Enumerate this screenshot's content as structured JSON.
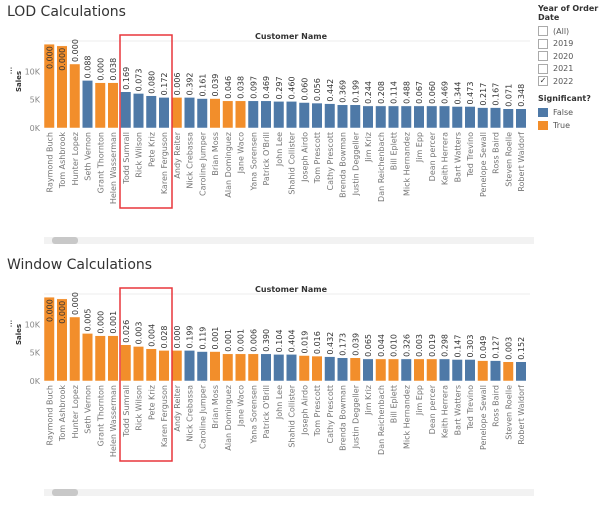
{
  "filter": {
    "title": "Year of Order Date",
    "options": [
      {
        "label": "(All)",
        "checked": false
      },
      {
        "label": "2019",
        "checked": false
      },
      {
        "label": "2020",
        "checked": false
      },
      {
        "label": "2021",
        "checked": false
      },
      {
        "label": "2022",
        "checked": true
      }
    ]
  },
  "legend": {
    "title": "Significant?",
    "items": [
      {
        "label": "False",
        "color": "#4E79A7"
      },
      {
        "label": "True",
        "color": "#F28E2B"
      }
    ]
  },
  "chart_data": [
    {
      "type": "bar",
      "title": "LOD Calculations",
      "xlabel": "Customer Name",
      "ylabel": "Sales",
      "yticks": [
        "0K",
        "5K",
        "10K"
      ],
      "ylim": [
        0,
        15000
      ],
      "categories": [
        "Raymond Buch",
        "Tom Ashbrook",
        "Hunter Lopez",
        "Seth Vernon",
        "Grant Thornton",
        "Helen Wasserman",
        "Todd Sumrall",
        "Rick Wilson",
        "Pete Kriz",
        "Karen Ferguson",
        "Andy Reiter",
        "Nick Crebassa",
        "Caroline Jumper",
        "Brian Moss",
        "Alan Dominguez",
        "Jane Waco",
        "Yana Sorensen",
        "Patrick O'Brill",
        "John Lee",
        "Shahid Collister",
        "Joseph Airdo",
        "Tom Prescott",
        "Cathy Prescott",
        "Brenda Bowman",
        "Justin Deggeller",
        "Jim Kriz",
        "Dan Reichenbach",
        "Bill Eplett",
        "Mick Hernandez",
        "Jim Epp",
        "Dean percer",
        "Keith Herrera",
        "Bart Watters",
        "Ted Trevino",
        "Penelope Sewall",
        "Ross Baird",
        "Steven Roelle",
        "Robert Waldorf"
      ],
      "values": [
        14800,
        14500,
        11300,
        8400,
        8000,
        8000,
        6400,
        6100,
        5700,
        5400,
        5400,
        5400,
        5200,
        5200,
        4800,
        4800,
        4800,
        4800,
        4700,
        4700,
        4500,
        4400,
        4300,
        4100,
        4100,
        3900,
        3900,
        3900,
        3900,
        3900,
        3900,
        3900,
        3800,
        3800,
        3600,
        3600,
        3400,
        3400
      ],
      "labels": [
        "0.000",
        "0.000",
        "0.000",
        "0.088",
        "0.000",
        "0.038",
        "0.169",
        "0.073",
        "0.080",
        "0.172",
        "0.006",
        "0.392",
        "0.161",
        "0.039",
        "0.046",
        "0.038",
        "0.097",
        "0.469",
        "0.297",
        "0.460",
        "0.060",
        "0.056",
        "0.442",
        "0.369",
        "0.199",
        "0.244",
        "0.208",
        "0.114",
        "0.488",
        "0.067",
        "0.060",
        "0.469",
        "0.344",
        "0.473",
        "0.217",
        "0.167",
        "0.071",
        "0.348"
      ],
      "significant": [
        true,
        true,
        true,
        false,
        true,
        true,
        false,
        false,
        false,
        false,
        true,
        false,
        false,
        true,
        true,
        true,
        false,
        false,
        false,
        false,
        false,
        false,
        false,
        false,
        false,
        false,
        false,
        false,
        false,
        false,
        false,
        false,
        false,
        false,
        false,
        false,
        false,
        false
      ]
    },
    {
      "type": "bar",
      "title": "Window Calculations",
      "xlabel": "Customer Name",
      "ylabel": "Sales",
      "yticks": [
        "0K",
        "5K",
        "10K"
      ],
      "ylim": [
        0,
        15000
      ],
      "categories": [
        "Raymond Buch",
        "Tom Ashbrook",
        "Hunter Lopez",
        "Seth Vernon",
        "Grant Thornton",
        "Helen Wasserman",
        "Todd Sumrall",
        "Rick Wilson",
        "Pete Kriz",
        "Karen Ferguson",
        "Andy Reiter",
        "Nick Crebassa",
        "Caroline Jumper",
        "Brian Moss",
        "Alan Dominguez",
        "Jane Waco",
        "Yana Sorensen",
        "Patrick O'Brill",
        "John Lee",
        "Shahid Collister",
        "Joseph Airdo",
        "Tom Prescott",
        "Cathy Prescott",
        "Brenda Bowman",
        "Justin Deggeller",
        "Jim Kriz",
        "Dan Reichenbach",
        "Bill Eplett",
        "Mick Hernandez",
        "Jim Epp",
        "Dean percer",
        "Keith Herrera",
        "Bart Watters",
        "Ted Trevino",
        "Penelope Sewall",
        "Ross Baird",
        "Steven Roelle",
        "Robert Waldorf"
      ],
      "values": [
        14800,
        14500,
        11300,
        8400,
        8000,
        8000,
        6400,
        6100,
        5700,
        5400,
        5400,
        5400,
        5200,
        5200,
        4800,
        4800,
        4800,
        4800,
        4700,
        4700,
        4500,
        4400,
        4300,
        4100,
        4100,
        3900,
        3900,
        3900,
        3900,
        3900,
        3900,
        3900,
        3800,
        3800,
        3600,
        3600,
        3400,
        3400
      ],
      "labels": [
        "0.000",
        "0.000",
        "0.000",
        "0.005",
        "0.000",
        "0.001",
        "0.026",
        "0.003",
        "0.004",
        "0.028",
        "0.000",
        "0.199",
        "0.119",
        "0.001",
        "0.001",
        "0.001",
        "0.006",
        "0.390",
        "0.104",
        "0.404",
        "0.019",
        "0.016",
        "0.432",
        "0.173",
        "0.039",
        "0.065",
        "0.044",
        "0.010",
        "0.326",
        "0.003",
        "0.019",
        "0.298",
        "0.147",
        "0.303",
        "0.049",
        "0.127",
        "0.003",
        "0.152"
      ],
      "significant": [
        true,
        true,
        true,
        true,
        true,
        true,
        true,
        true,
        true,
        true,
        true,
        false,
        false,
        true,
        true,
        true,
        true,
        false,
        false,
        false,
        true,
        true,
        false,
        false,
        true,
        false,
        true,
        true,
        false,
        true,
        true,
        false,
        false,
        false,
        true,
        false,
        true,
        false
      ]
    }
  ]
}
